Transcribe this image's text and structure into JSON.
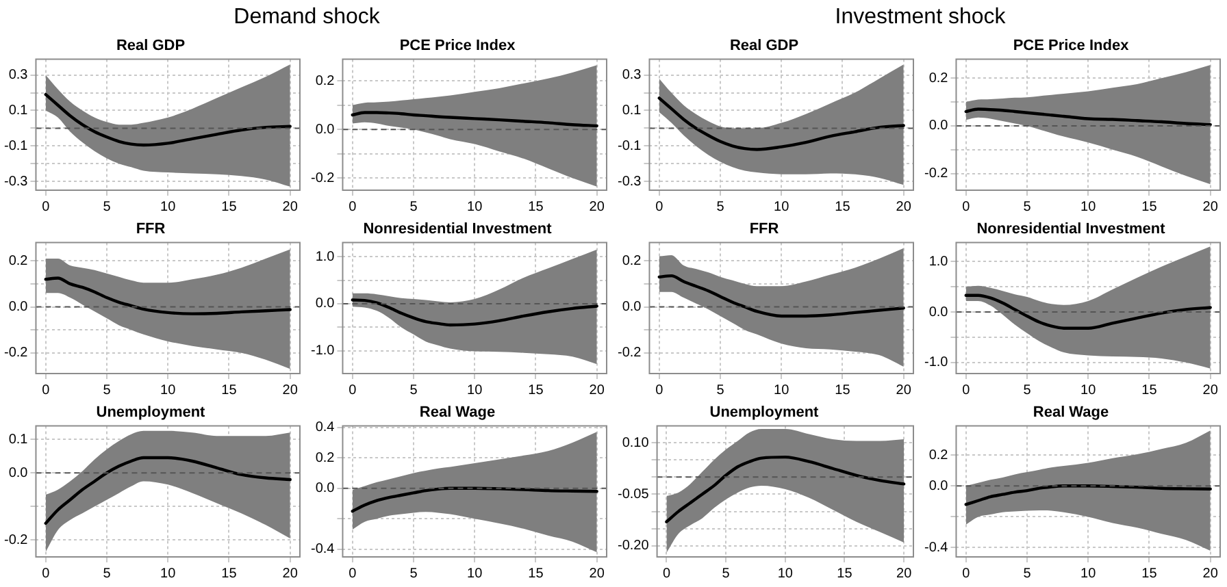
{
  "chart_data": [
    {
      "type": "line",
      "title": "Real GDP",
      "annotations": [
        "Demand shock"
      ],
      "x": [
        0,
        1,
        2,
        3,
        4,
        5,
        6,
        7,
        8,
        10,
        12,
        14,
        16,
        18,
        20
      ],
      "xlim": [
        -0.8,
        20.8
      ],
      "xticks": [
        0,
        5,
        10,
        15,
        20
      ],
      "ylim": [
        -0.35,
        0.39
      ],
      "yticks": [
        {
          "value": -0.3,
          "label": "-0.3"
        },
        {
          "value": -0.2,
          "label": null
        },
        {
          "value": -0.1,
          "label": "-0.1"
        },
        {
          "value": 0,
          "label": null
        },
        {
          "value": 0.1,
          "label": "0.1"
        },
        {
          "value": 0.2,
          "label": null
        },
        {
          "value": 0.3,
          "label": "0.3"
        }
      ],
      "grid": true,
      "ref_lines": [
        {
          "axis": "y",
          "value": 0,
          "line_style": "dashed",
          "color": "#555555"
        }
      ],
      "series": [
        {
          "color": "#000000",
          "values": [
            0.19,
            0.13,
            0.07,
            0.02,
            -0.02,
            -0.05,
            -0.075,
            -0.09,
            -0.095,
            -0.085,
            -0.06,
            -0.035,
            -0.01,
            0.005,
            0.01
          ],
          "lower": [
            0.1,
            0.06,
            -0.02,
            -0.08,
            -0.13,
            -0.17,
            -0.2,
            -0.22,
            -0.24,
            -0.25,
            -0.255,
            -0.26,
            -0.27,
            -0.29,
            -0.33
          ],
          "upper": [
            0.3,
            0.22,
            0.15,
            0.1,
            0.06,
            0.035,
            0.02,
            0.02,
            0.03,
            0.06,
            0.11,
            0.17,
            0.23,
            0.29,
            0.36
          ]
        }
      ]
    },
    {
      "type": "line",
      "title": "PCE Price Index",
      "x": [
        0,
        1,
        2,
        3,
        4,
        5,
        6,
        7,
        8,
        10,
        12,
        14,
        16,
        18,
        20
      ],
      "xlim": [
        -0.8,
        20.8
      ],
      "xticks": [
        0,
        5,
        10,
        15,
        20
      ],
      "ylim": [
        -0.25,
        0.29
      ],
      "yticks": [
        {
          "value": -0.2,
          "label": "-0.2"
        },
        {
          "value": -0.1,
          "label": null
        },
        {
          "value": 0,
          "label": "0.0"
        },
        {
          "value": 0.1,
          "label": null
        },
        {
          "value": 0.2,
          "label": "0.2"
        }
      ],
      "grid": true,
      "ref_lines": [
        {
          "axis": "y",
          "value": 0,
          "line_style": "dashed",
          "color": "#555555"
        }
      ],
      "series": [
        {
          "color": "#000000",
          "values": [
            0.06,
            0.07,
            0.07,
            0.068,
            0.065,
            0.06,
            0.057,
            0.053,
            0.05,
            0.045,
            0.04,
            0.034,
            0.028,
            0.02,
            0.015
          ],
          "lower": [
            0.025,
            0.03,
            0.025,
            0.015,
            0.008,
            0.0,
            -0.012,
            -0.025,
            -0.04,
            -0.06,
            -0.09,
            -0.12,
            -0.16,
            -0.2,
            -0.235
          ],
          "upper": [
            0.1,
            0.11,
            0.112,
            0.115,
            0.12,
            0.125,
            0.13,
            0.135,
            0.14,
            0.155,
            0.17,
            0.19,
            0.21,
            0.235,
            0.265
          ]
        }
      ]
    },
    {
      "type": "line",
      "title": "FFR",
      "x": [
        0,
        1,
        2,
        3,
        4,
        5,
        6,
        7,
        8,
        10,
        12,
        14,
        16,
        18,
        20
      ],
      "xlim": [
        -0.8,
        20.8
      ],
      "xticks": [
        0,
        5,
        10,
        15,
        20
      ],
      "ylim": [
        -0.29,
        0.28
      ],
      "yticks": [
        {
          "value": -0.2,
          "label": "-0.2"
        },
        {
          "value": -0.1,
          "label": null
        },
        {
          "value": 0,
          "label": "0.0"
        },
        {
          "value": 0.1,
          "label": null
        },
        {
          "value": 0.2,
          "label": "0.2"
        }
      ],
      "grid": true,
      "ref_lines": [
        {
          "axis": "y",
          "value": 0,
          "line_style": "dashed",
          "color": "#555555"
        }
      ],
      "series": [
        {
          "color": "#000000",
          "values": [
            0.12,
            0.125,
            0.1,
            0.085,
            0.065,
            0.04,
            0.02,
            0.005,
            -0.01,
            -0.025,
            -0.03,
            -0.028,
            -0.022,
            -0.017,
            -0.012
          ],
          "lower": [
            0.06,
            0.06,
            0.04,
            0.01,
            -0.02,
            -0.05,
            -0.08,
            -0.1,
            -0.12,
            -0.15,
            -0.17,
            -0.185,
            -0.2,
            -0.23,
            -0.27
          ],
          "upper": [
            0.21,
            0.21,
            0.18,
            0.17,
            0.16,
            0.145,
            0.13,
            0.115,
            0.105,
            0.105,
            0.12,
            0.14,
            0.17,
            0.21,
            0.25
          ]
        }
      ]
    },
    {
      "type": "line",
      "title": "Nonresidential Investment",
      "x": [
        0,
        1,
        2,
        3,
        4,
        5,
        6,
        7,
        8,
        10,
        12,
        14,
        16,
        18,
        20
      ],
      "xlim": [
        -0.8,
        20.8
      ],
      "xticks": [
        0,
        5,
        10,
        15,
        20
      ],
      "ylim": [
        -1.48,
        1.3
      ],
      "yticks": [
        {
          "value": -1,
          "label": "-1.0"
        },
        {
          "value": -0.5,
          "label": null
        },
        {
          "value": 0,
          "label": "0.0"
        },
        {
          "value": 0.5,
          "label": null
        },
        {
          "value": 1,
          "label": "1.0"
        }
      ],
      "grid": true,
      "ref_lines": [
        {
          "axis": "y",
          "value": 0,
          "line_style": "dashed",
          "color": "#555555"
        }
      ],
      "series": [
        {
          "color": "#000000",
          "values": [
            0.08,
            0.07,
            0.02,
            -0.08,
            -0.2,
            -0.3,
            -0.38,
            -0.42,
            -0.45,
            -0.43,
            -0.36,
            -0.26,
            -0.17,
            -0.1,
            -0.05
          ],
          "lower": [
            -0.06,
            -0.08,
            -0.15,
            -0.3,
            -0.5,
            -0.65,
            -0.8,
            -0.88,
            -0.95,
            -1.01,
            -1.02,
            -1.04,
            -1.07,
            -1.12,
            -1.28
          ],
          "upper": [
            0.22,
            0.22,
            0.2,
            0.16,
            0.12,
            0.1,
            0.08,
            0.05,
            0.03,
            0.1,
            0.3,
            0.55,
            0.75,
            0.95,
            1.15
          ]
        }
      ]
    },
    {
      "type": "line",
      "title": "Unemployment",
      "x": [
        0,
        1,
        2,
        3,
        4,
        5,
        6,
        7,
        8,
        10,
        12,
        14,
        16,
        18,
        20
      ],
      "xlim": [
        -0.8,
        20.8
      ],
      "xticks": [
        0,
        5,
        10,
        15,
        20
      ],
      "ylim": [
        -0.25,
        0.14
      ],
      "yticks": [
        {
          "value": -0.2,
          "label": "-0.2"
        },
        {
          "value": -0.1,
          "label": null
        },
        {
          "value": 0,
          "label": "0.0"
        },
        {
          "value": 0.1,
          "label": "0.1"
        }
      ],
      "grid": true,
      "ref_lines": [
        {
          "axis": "y",
          "value": 0,
          "line_style": "dashed",
          "color": "#555555"
        }
      ],
      "series": [
        {
          "color": "#000000",
          "values": [
            -0.15,
            -0.11,
            -0.08,
            -0.05,
            -0.025,
            0,
            0.02,
            0.035,
            0.045,
            0.045,
            0.035,
            0.015,
            -0.005,
            -0.015,
            -0.02
          ],
          "lower": [
            -0.235,
            -0.17,
            -0.14,
            -0.12,
            -0.1,
            -0.08,
            -0.06,
            -0.04,
            -0.025,
            -0.035,
            -0.06,
            -0.09,
            -0.12,
            -0.155,
            -0.195
          ],
          "upper": [
            -0.065,
            -0.05,
            -0.025,
            0.005,
            0.04,
            0.07,
            0.095,
            0.115,
            0.125,
            0.125,
            0.12,
            0.11,
            0.11,
            0.11,
            0.12
          ]
        }
      ]
    },
    {
      "type": "line",
      "title": "Real Wage",
      "x": [
        0,
        1,
        2,
        3,
        4,
        5,
        6,
        7,
        8,
        10,
        12,
        14,
        16,
        18,
        20
      ],
      "xlim": [
        -0.8,
        20.8
      ],
      "xticks": [
        0,
        5,
        10,
        15,
        20
      ],
      "ylim": [
        -0.45,
        0.41
      ],
      "yticks": [
        {
          "value": -0.4,
          "label": "-0.4"
        },
        {
          "value": -0.2,
          "label": null
        },
        {
          "value": 0,
          "label": "0.0"
        },
        {
          "value": 0.2,
          "label": "0.2"
        },
        {
          "value": 0.4,
          "label": "0.4"
        }
      ],
      "grid": true,
      "ref_lines": [
        {
          "axis": "y",
          "value": 0,
          "line_style": "dashed",
          "color": "#555555"
        }
      ],
      "series": [
        {
          "color": "#000000",
          "values": [
            -0.15,
            -0.11,
            -0.08,
            -0.06,
            -0.045,
            -0.03,
            -0.015,
            -0.005,
            0,
            0,
            -0.003,
            -0.008,
            -0.015,
            -0.018,
            -0.02
          ],
          "lower": [
            -0.27,
            -0.22,
            -0.2,
            -0.18,
            -0.17,
            -0.16,
            -0.155,
            -0.16,
            -0.17,
            -0.2,
            -0.23,
            -0.265,
            -0.31,
            -0.35,
            -0.42
          ],
          "upper": [
            -0.01,
            0.015,
            0.04,
            0.06,
            0.08,
            0.1,
            0.115,
            0.13,
            0.14,
            0.165,
            0.19,
            0.215,
            0.245,
            0.3,
            0.37
          ]
        }
      ]
    },
    {
      "type": "line",
      "title": "Real GDP",
      "annotations": [
        "Investment shock"
      ],
      "x": [
        0,
        1,
        2,
        3,
        4,
        5,
        6,
        7,
        8,
        10,
        12,
        14,
        16,
        18,
        20
      ],
      "xlim": [
        -0.8,
        20.8
      ],
      "xticks": [
        0,
        5,
        10,
        15,
        20
      ],
      "ylim": [
        -0.35,
        0.39
      ],
      "yticks": [
        {
          "value": -0.3,
          "label": "-0.3"
        },
        {
          "value": -0.2,
          "label": null
        },
        {
          "value": -0.1,
          "label": "-0.1"
        },
        {
          "value": 0,
          "label": null
        },
        {
          "value": 0.1,
          "label": "0.1"
        },
        {
          "value": 0.2,
          "label": null
        },
        {
          "value": 0.3,
          "label": "0.3"
        }
      ],
      "grid": true,
      "ref_lines": [
        {
          "axis": "y",
          "value": 0,
          "line_style": "dashed",
          "color": "#555555"
        }
      ],
      "series": [
        {
          "color": "#000000",
          "values": [
            0.17,
            0.11,
            0.05,
            0,
            -0.04,
            -0.075,
            -0.1,
            -0.115,
            -0.12,
            -0.105,
            -0.08,
            -0.045,
            -0.02,
            0.005,
            0.015
          ],
          "lower": [
            0.09,
            0.03,
            -0.04,
            -0.1,
            -0.15,
            -0.19,
            -0.22,
            -0.24,
            -0.25,
            -0.26,
            -0.26,
            -0.255,
            -0.26,
            -0.28,
            -0.32
          ],
          "upper": [
            0.28,
            0.2,
            0.13,
            0.08,
            0.04,
            0.01,
            0,
            0,
            0,
            0.03,
            0.08,
            0.14,
            0.2,
            0.28,
            0.36
          ]
        }
      ]
    },
    {
      "type": "line",
      "title": "PCE Price Index",
      "x": [
        0,
        1,
        2,
        3,
        4,
        5,
        6,
        7,
        8,
        10,
        12,
        14,
        16,
        18,
        20
      ],
      "xlim": [
        -0.8,
        20.8
      ],
      "xticks": [
        0,
        5,
        10,
        15,
        20
      ],
      "ylim": [
        -0.27,
        0.28
      ],
      "yticks": [
        {
          "value": -0.2,
          "label": "-0.2"
        },
        {
          "value": -0.1,
          "label": null
        },
        {
          "value": 0,
          "label": "0.0"
        },
        {
          "value": 0.1,
          "label": null
        },
        {
          "value": 0.2,
          "label": "0.2"
        }
      ],
      "grid": true,
      "ref_lines": [
        {
          "axis": "y",
          "value": 0,
          "line_style": "dashed",
          "color": "#555555"
        }
      ],
      "series": [
        {
          "color": "#000000",
          "values": [
            0.06,
            0.07,
            0.068,
            0.065,
            0.06,
            0.055,
            0.05,
            0.045,
            0.04,
            0.03,
            0.027,
            0.022,
            0.017,
            0.01,
            0.005
          ],
          "lower": [
            0.025,
            0.035,
            0.03,
            0.02,
            0.01,
            0,
            -0.015,
            -0.03,
            -0.045,
            -0.07,
            -0.1,
            -0.13,
            -0.17,
            -0.21,
            -0.245
          ],
          "upper": [
            0.1,
            0.11,
            0.112,
            0.115,
            0.118,
            0.12,
            0.125,
            0.13,
            0.135,
            0.145,
            0.16,
            0.175,
            0.2,
            0.225,
            0.255
          ]
        }
      ]
    },
    {
      "type": "line",
      "title": "FFR",
      "x": [
        0,
        1,
        2,
        3,
        4,
        5,
        6,
        7,
        8,
        10,
        12,
        14,
        16,
        18,
        20
      ],
      "xlim": [
        -0.8,
        20.8
      ],
      "xticks": [
        0,
        5,
        10,
        15,
        20
      ],
      "ylim": [
        -0.29,
        0.28
      ],
      "yticks": [
        {
          "value": -0.2,
          "label": "-0.2"
        },
        {
          "value": -0.1,
          "label": null
        },
        {
          "value": 0,
          "label": "0.0"
        },
        {
          "value": 0.1,
          "label": null
        },
        {
          "value": 0.2,
          "label": "0.2"
        }
      ],
      "grid": true,
      "ref_lines": [
        {
          "axis": "y",
          "value": 0,
          "line_style": "dashed",
          "color": "#555555"
        }
      ],
      "series": [
        {
          "color": "#000000",
          "values": [
            0.13,
            0.135,
            0.11,
            0.09,
            0.07,
            0.045,
            0.02,
            0,
            -0.02,
            -0.04,
            -0.04,
            -0.035,
            -0.025,
            -0.015,
            -0.005
          ],
          "lower": [
            0.065,
            0.065,
            0.04,
            0.015,
            -0.01,
            -0.04,
            -0.07,
            -0.1,
            -0.12,
            -0.16,
            -0.18,
            -0.185,
            -0.195,
            -0.21,
            -0.26
          ],
          "upper": [
            0.22,
            0.225,
            0.18,
            0.165,
            0.15,
            0.13,
            0.115,
            0.1,
            0.09,
            0.09,
            0.11,
            0.14,
            0.17,
            0.21,
            0.255
          ]
        }
      ]
    },
    {
      "type": "line",
      "title": "Nonresidential Investment",
      "x": [
        0,
        1,
        2,
        3,
        4,
        5,
        6,
        7,
        8,
        10,
        12,
        14,
        16,
        18,
        20
      ],
      "xlim": [
        -0.8,
        20.8
      ],
      "xticks": [
        0,
        5,
        10,
        15,
        20
      ],
      "ylim": [
        -1.22,
        1.38
      ],
      "yticks": [
        {
          "value": -1,
          "label": "-1.0"
        },
        {
          "value": -0.5,
          "label": null
        },
        {
          "value": 0,
          "label": "0.0"
        },
        {
          "value": 0.5,
          "label": null
        },
        {
          "value": 1,
          "label": "1.0"
        }
      ],
      "grid": true,
      "ref_lines": [
        {
          "axis": "y",
          "value": 0,
          "line_style": "dashed",
          "color": "#555555"
        }
      ],
      "series": [
        {
          "color": "#000000",
          "values": [
            0.33,
            0.33,
            0.28,
            0.18,
            0.05,
            -0.08,
            -0.2,
            -0.28,
            -0.32,
            -0.32,
            -0.22,
            -0.12,
            -0.02,
            0.05,
            0.09
          ],
          "lower": [
            0.22,
            0.22,
            0.13,
            -0.05,
            -0.25,
            -0.42,
            -0.58,
            -0.7,
            -0.8,
            -0.86,
            -0.88,
            -0.89,
            -0.92,
            -1,
            -1.12
          ],
          "upper": [
            0.5,
            0.52,
            0.48,
            0.42,
            0.35,
            0.3,
            0.22,
            0.16,
            0.14,
            0.22,
            0.45,
            0.68,
            0.9,
            1.1,
            1.3
          ]
        }
      ]
    },
    {
      "type": "line",
      "title": "Unemployment",
      "x": [
        0,
        1,
        2,
        3,
        4,
        5,
        6,
        7,
        8,
        10,
        12,
        14,
        16,
        18,
        20
      ],
      "xlim": [
        -0.8,
        20.8
      ],
      "xticks": [
        0,
        5,
        10,
        15,
        20
      ],
      "ylim": [
        -0.232,
        0.149
      ],
      "yticks": [
        {
          "value": -0.2,
          "label": "-0.20"
        },
        {
          "value": -0.15,
          "label": null
        },
        {
          "value": -0.1,
          "label": null
        },
        {
          "value": -0.05,
          "label": "-0.05"
        },
        {
          "value": 0,
          "label": null
        },
        {
          "value": 0.05,
          "label": null
        },
        {
          "value": 0.1,
          "label": "0.10"
        }
      ],
      "grid": true,
      "ref_lines": [
        {
          "axis": "y",
          "value": 0,
          "line_style": "dashed",
          "color": "#555555"
        }
      ],
      "series": [
        {
          "color": "#000000",
          "values": [
            -0.13,
            -0.1,
            -0.075,
            -0.05,
            -0.025,
            0.005,
            0.03,
            0.045,
            0.055,
            0.058,
            0.045,
            0.025,
            0.005,
            -0.01,
            -0.02
          ],
          "lower": [
            -0.22,
            -0.165,
            -0.14,
            -0.12,
            -0.09,
            -0.065,
            -0.045,
            -0.03,
            -0.025,
            -0.035,
            -0.06,
            -0.095,
            -0.13,
            -0.16,
            -0.19
          ],
          "upper": [
            -0.055,
            -0.045,
            -0.02,
            0.015,
            0.05,
            0.08,
            0.105,
            0.13,
            0.14,
            0.14,
            0.125,
            0.11,
            0.105,
            0.105,
            0.11
          ]
        }
      ]
    },
    {
      "type": "line",
      "title": "Real Wage",
      "x": [
        0,
        1,
        2,
        3,
        4,
        5,
        6,
        7,
        8,
        10,
        12,
        14,
        16,
        18,
        20
      ],
      "xlim": [
        -0.8,
        20.8
      ],
      "xticks": [
        0,
        5,
        10,
        15,
        20
      ],
      "ylim": [
        -0.46,
        0.39
      ],
      "yticks": [
        {
          "value": -0.4,
          "label": "-0.4"
        },
        {
          "value": -0.2,
          "label": null
        },
        {
          "value": 0,
          "label": "0.0"
        },
        {
          "value": 0.2,
          "label": "0.2"
        }
      ],
      "grid": true,
      "ref_lines": [
        {
          "axis": "y",
          "value": 0,
          "line_style": "dashed",
          "color": "#555555"
        }
      ],
      "series": [
        {
          "color": "#000000",
          "values": [
            -0.12,
            -0.095,
            -0.07,
            -0.055,
            -0.04,
            -0.03,
            -0.015,
            -0.005,
            0,
            0,
            -0.003,
            -0.008,
            -0.015,
            -0.018,
            -0.02
          ],
          "lower": [
            -0.25,
            -0.2,
            -0.185,
            -0.17,
            -0.165,
            -0.16,
            -0.158,
            -0.16,
            -0.17,
            -0.2,
            -0.24,
            -0.27,
            -0.31,
            -0.35,
            -0.42
          ],
          "upper": [
            0,
            0.02,
            0.04,
            0.055,
            0.075,
            0.09,
            0.105,
            0.12,
            0.13,
            0.15,
            0.18,
            0.205,
            0.24,
            0.28,
            0.36
          ]
        }
      ]
    }
  ]
}
